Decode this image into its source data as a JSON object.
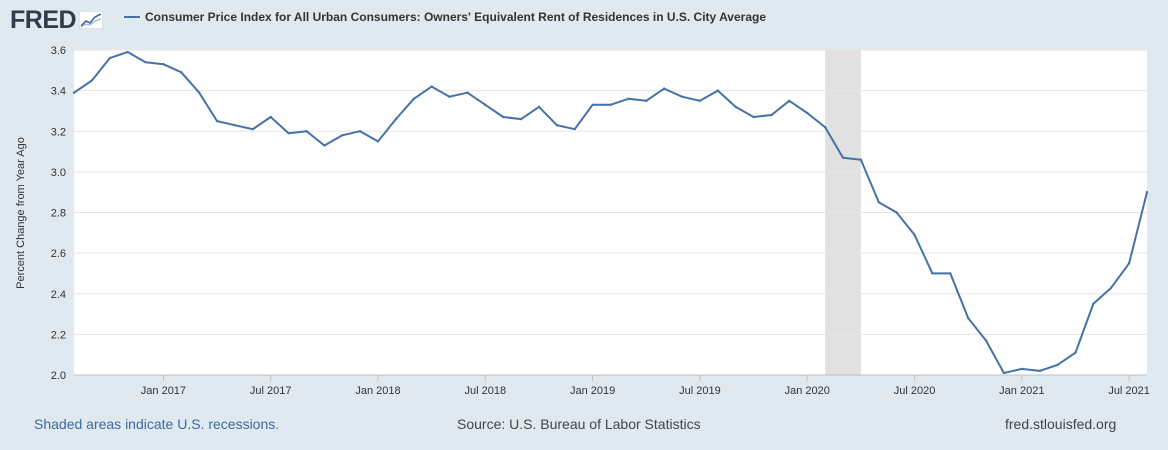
{
  "logo": {
    "text": "FRED"
  },
  "footer": {
    "recession_note": "Shaded areas indicate U.S. recessions.",
    "source": "Source: U.S. Bureau of Labor Statistics",
    "site": "fred.stlouisfed.org"
  },
  "colors": {
    "line": "#4572a7",
    "background": "#e1e9f0",
    "plot": "#ffffff",
    "recession": "#e1e1e1"
  },
  "chart_data": {
    "type": "line",
    "title": "Consumer Price Index for All Urban Consumers: Owners' Equivalent Rent of Residences in U.S. City Average",
    "ylabel": "Percent Change from Year Ago",
    "xlabel": "",
    "ylim": [
      2.0,
      3.6
    ],
    "yticks": [
      "2.0",
      "2.2",
      "2.4",
      "2.6",
      "2.8",
      "3.0",
      "3.2",
      "3.4",
      "3.6"
    ],
    "xlim": [
      "2016-08",
      "2021-08"
    ],
    "xticks": [
      {
        "x": "2017-01",
        "label": "Jan 2017"
      },
      {
        "x": "2017-07",
        "label": "Jul 2017"
      },
      {
        "x": "2018-01",
        "label": "Jan 2018"
      },
      {
        "x": "2018-07",
        "label": "Jul 2018"
      },
      {
        "x": "2019-01",
        "label": "Jan 2019"
      },
      {
        "x": "2019-07",
        "label": "Jul 2019"
      },
      {
        "x": "2020-01",
        "label": "Jan 2020"
      },
      {
        "x": "2020-07",
        "label": "Jul 2020"
      },
      {
        "x": "2021-01",
        "label": "Jan 2021"
      },
      {
        "x": "2021-07",
        "label": "Jul 2021"
      }
    ],
    "recessions": [
      {
        "start": "2020-02",
        "end": "2020-04"
      }
    ],
    "grid": true,
    "series": [
      {
        "name": "Consumer Price Index for All Urban Consumers: Owners' Equivalent Rent of Residences in U.S. City Average",
        "x": [
          "2016-08",
          "2016-09",
          "2016-10",
          "2016-11",
          "2016-12",
          "2017-01",
          "2017-02",
          "2017-03",
          "2017-04",
          "2017-05",
          "2017-06",
          "2017-07",
          "2017-08",
          "2017-09",
          "2017-10",
          "2017-11",
          "2017-12",
          "2018-01",
          "2018-02",
          "2018-03",
          "2018-04",
          "2018-05",
          "2018-06",
          "2018-07",
          "2018-08",
          "2018-09",
          "2018-10",
          "2018-11",
          "2018-12",
          "2019-01",
          "2019-02",
          "2019-03",
          "2019-04",
          "2019-05",
          "2019-06",
          "2019-07",
          "2019-08",
          "2019-09",
          "2019-10",
          "2019-11",
          "2019-12",
          "2020-01",
          "2020-02",
          "2020-03",
          "2020-04",
          "2020-05",
          "2020-06",
          "2020-07",
          "2020-08",
          "2020-09",
          "2020-10",
          "2020-11",
          "2020-12",
          "2021-01",
          "2021-02",
          "2021-03",
          "2021-04",
          "2021-05",
          "2021-06",
          "2021-07",
          "2021-08"
        ],
        "values": [
          3.39,
          3.45,
          3.56,
          3.59,
          3.54,
          3.53,
          3.49,
          3.39,
          3.25,
          3.23,
          3.21,
          3.27,
          3.19,
          3.2,
          3.13,
          3.18,
          3.2,
          3.15,
          3.26,
          3.36,
          3.42,
          3.37,
          3.39,
          3.33,
          3.27,
          3.26,
          3.32,
          3.23,
          3.21,
          3.33,
          3.33,
          3.36,
          3.35,
          3.41,
          3.37,
          3.35,
          3.4,
          3.32,
          3.27,
          3.28,
          3.35,
          3.29,
          3.22,
          3.07,
          3.06,
          2.85,
          2.8,
          2.69,
          2.5,
          2.5,
          2.28,
          2.17,
          2.01,
          2.03,
          2.02,
          2.05,
          2.11,
          2.35,
          2.43,
          2.55,
          2.9
        ]
      }
    ]
  }
}
